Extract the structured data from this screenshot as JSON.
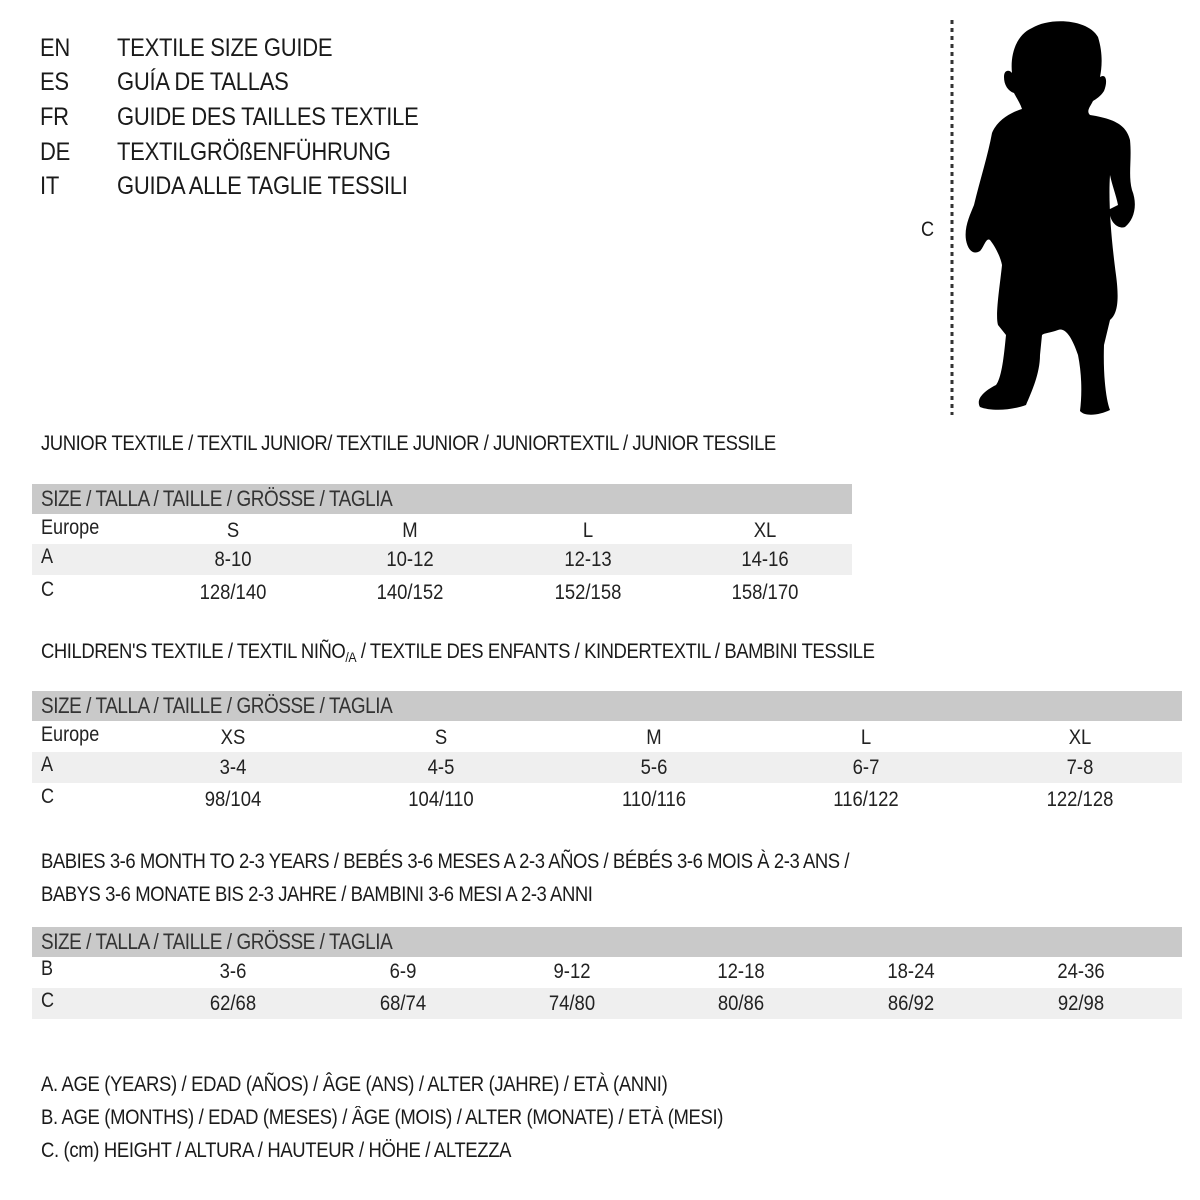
{
  "languages": [
    {
      "code": "EN",
      "title": "TEXTILE SIZE GUIDE"
    },
    {
      "code": "ES",
      "title": "GUÍA DE TALLAS"
    },
    {
      "code": "FR",
      "title": "GUIDE DES TAILLES TEXTILE"
    },
    {
      "code": "DE",
      "title": "TEXTILGRÖßENFÜHRUNG"
    },
    {
      "code": "IT",
      "title": "GUIDA ALLE TAGLIE TESSILI"
    }
  ],
  "figure": {
    "measure_label": "C",
    "icon": "child-silhouette-icon"
  },
  "sections": [
    {
      "title": "JUNIOR TEXTILE / TEXTIL JUNIOR/ TEXTILE JUNIOR / JUNIORTEXTIL / JUNIOR TESSILE"
    },
    {
      "title_pre": "CHILDREN'S TEXTILE / TEXTIL NIÑO",
      "title_sub": "/A",
      "title_post": " / TEXTILE DES ENFANTS / KINDERTEXTIL / BAMBINI TESSILE"
    },
    {
      "title_line1": "BABIES 3-6 MONTH TO 2-3 YEARS / BEBÉS 3-6 MESES A 2-3 AÑOS / BÉBÉS 3-6 MOIS À 2-3 ANS /",
      "title_line2": "BABYS 3-6 MONATE BIS 2-3 JAHRE / BAMBINI 3-6 MESI A 2-3 ANNI"
    }
  ],
  "tables": [
    {
      "header": "SIZE / TALLA / TAILLE / GRÖSSE / TAGLIA",
      "rows": [
        {
          "label": "Europe",
          "values": [
            "S",
            "M",
            "L",
            "XL"
          ]
        },
        {
          "label": "A",
          "values": [
            "8-10",
            "10-12",
            "12-13",
            "14-16"
          ]
        },
        {
          "label": "C",
          "values": [
            "128/140",
            "140/152",
            "152/158",
            "158/170"
          ]
        }
      ]
    },
    {
      "header": "SIZE / TALLA / TAILLE / GRÖSSE / TAGLIA",
      "rows": [
        {
          "label": "Europe",
          "values": [
            "XS",
            "S",
            "M",
            "L",
            "XL"
          ]
        },
        {
          "label": "A",
          "values": [
            "3-4",
            "4-5",
            "5-6",
            "6-7",
            "7-8"
          ]
        },
        {
          "label": "C",
          "values": [
            "98/104",
            "104/110",
            "110/116",
            "116/122",
            "122/128"
          ]
        }
      ]
    },
    {
      "header": "SIZE / TALLA / TAILLE / GRÖSSE / TAGLIA",
      "rows": [
        {
          "label": "B",
          "values": [
            "3-6",
            "6-9",
            "9-12",
            "12-18",
            "18-24",
            "24-36"
          ]
        },
        {
          "label": "C",
          "values": [
            "62/68",
            "68/74",
            "74/80",
            "80/86",
            "86/92",
            "92/98"
          ]
        }
      ]
    }
  ],
  "legend": [
    "A. AGE (YEARS) / EDAD (AÑOS) / ÂGE (ANS) / ALTER (JAHRE) / ETÀ (ANNI)",
    "B. AGE (MONTHS) / EDAD (MESES) / ÂGE (MOIS) / ALTER (MONATE) / ETÀ (MESI)",
    "C. (cm) HEIGHT / ALTURA / HAUTEUR / HÖHE / ALTEZZA"
  ]
}
